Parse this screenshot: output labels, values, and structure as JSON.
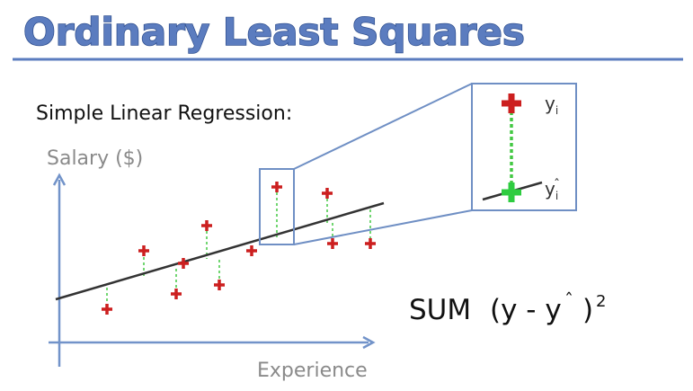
{
  "title": "Ordinary Least Squares",
  "subtitle": "Simple Linear Regression:",
  "axes": {
    "y_label": "Salary ($)",
    "x_label": "Experience"
  },
  "formula": {
    "sum": "SUM",
    "open": "(y - y",
    "close": ")",
    "power": "2"
  },
  "zoom_labels": {
    "observed": "y",
    "predicted": "y",
    "subscript": "i"
  },
  "colors": {
    "title": "#5b7cbf",
    "title_outline": "#2f4f8f",
    "rule": "#5b7cbf",
    "axis": "#7293c9",
    "regression_line": "#333333",
    "observed_point": "#cc1f1f",
    "predicted_point": "#2ecc40",
    "residual": "#43c843",
    "zoom_box": "#6f8fc4"
  },
  "icons": {
    "observed": "plus-marker-red",
    "predicted": "plus-marker-green"
  }
}
